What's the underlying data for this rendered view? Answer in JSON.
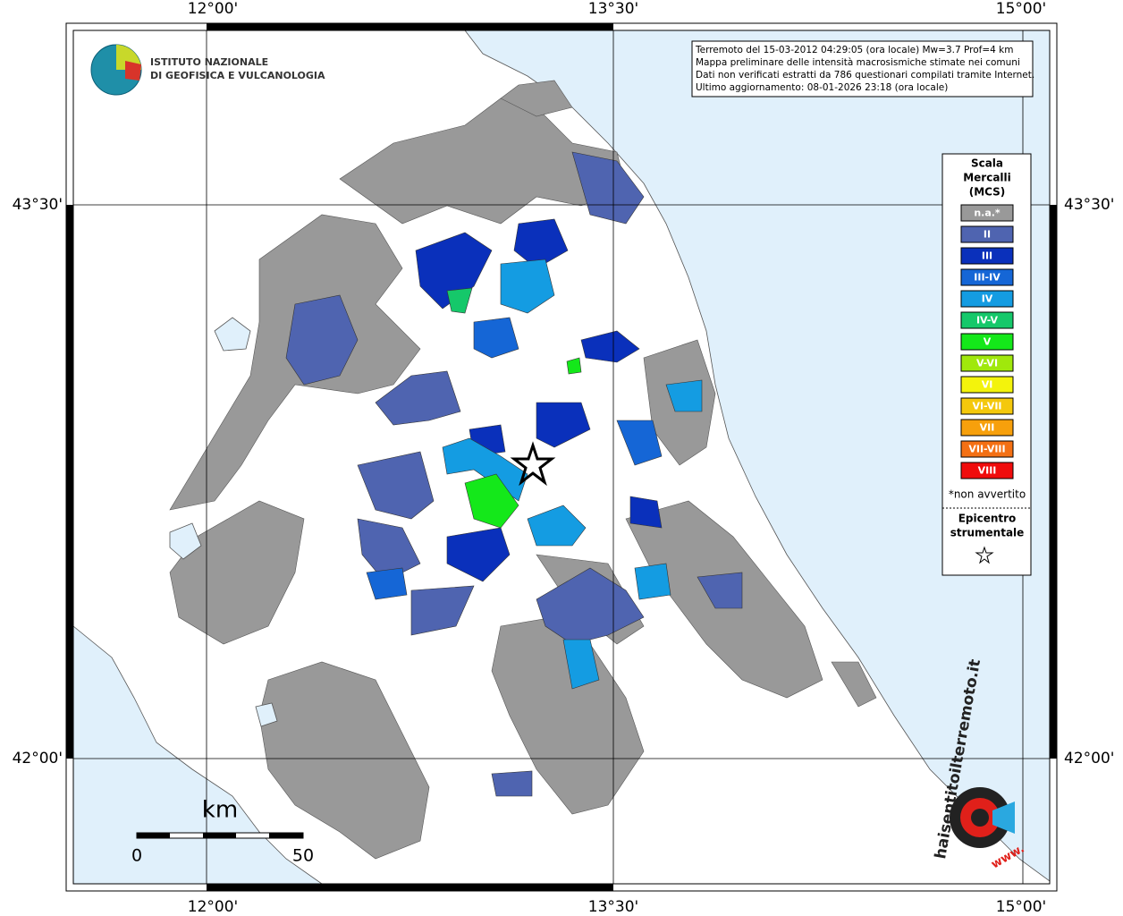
{
  "axes": {
    "longitudes": [
      "12°00'",
      "13°30'",
      "15°00'"
    ],
    "latitudes": [
      "43°30'",
      "42°00'"
    ]
  },
  "institute": [
    "ISTITUTO NAZIONALE",
    "DI GEOFISICA E VULCANOLOGIA"
  ],
  "info_box": [
    "Terremoto del 15-03-2012 04:29:05 (ora locale) Mw=3.7 Prof=4 km",
    "Mappa preliminare delle intensità macrosismiche stimate nei comuni",
    "Dati non verificati estratti da 786 questionari compilati tramite Internet.",
    "Ultimo aggiornamento: 08-01-2026 23:18 (ora locale)"
  ],
  "legend": {
    "title": [
      "Scala",
      "Mercalli",
      "(MCS)"
    ],
    "items": [
      {
        "label": "n.a.*",
        "color": "#999999"
      },
      {
        "label": "II",
        "color": "#4f64b0"
      },
      {
        "label": "III",
        "color": "#0a30bb"
      },
      {
        "label": "III-IV",
        "color": "#1566d6"
      },
      {
        "label": "IV",
        "color": "#149ce2"
      },
      {
        "label": "IV-V",
        "color": "#15c86a"
      },
      {
        "label": "V",
        "color": "#14e81a"
      },
      {
        "label": "V-VI",
        "color": "#a0e80c"
      },
      {
        "label": "VI",
        "color": "#f3f30c"
      },
      {
        "label": "VI-VII",
        "color": "#f4c80c"
      },
      {
        "label": "VII",
        "color": "#f7a00c"
      },
      {
        "label": "VII-VIII",
        "color": "#f47014"
      },
      {
        "label": "VIII",
        "color": "#f00c0c"
      }
    ],
    "note": "*non avvertito",
    "epicenter": [
      "Epicentro",
      "strumentale"
    ]
  },
  "scale_bar": {
    "unit": "km",
    "labels": [
      "0",
      "50"
    ]
  },
  "site_logo": {
    "name": "haisentitoilterremoto.it",
    "prefix": "www."
  }
}
